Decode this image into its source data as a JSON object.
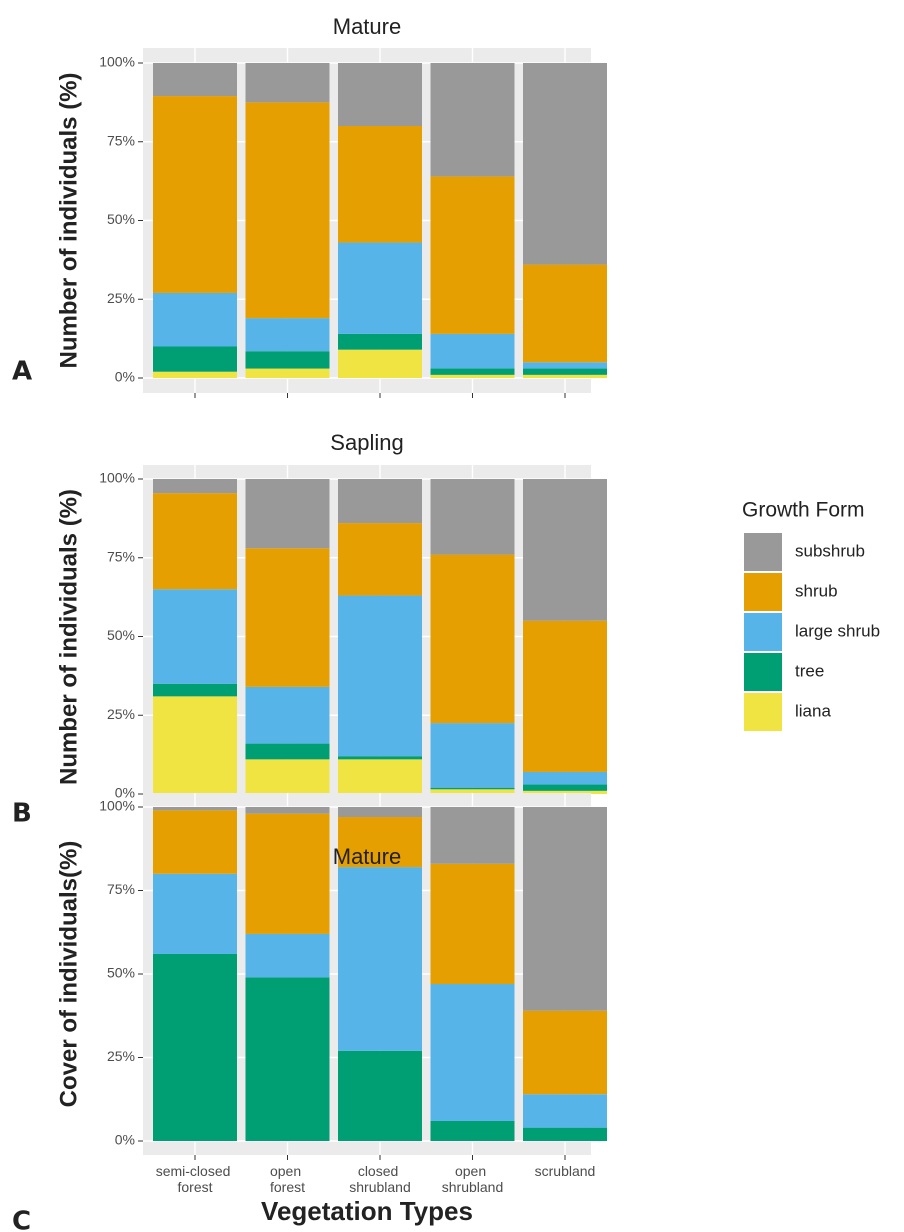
{
  "chart_data": [
    {
      "type": "bar",
      "stacked": true,
      "panel_label": "A",
      "title": "Mature",
      "y_label": "Number of individuals (%)",
      "categories": [
        "semi-closed forest",
        "open forest",
        "closed shrubland",
        "open shrubland",
        "scrubland"
      ],
      "show_category_labels": false,
      "ylim": [
        0,
        100
      ],
      "yticks": [
        {
          "value": 0,
          "label": "0%"
        },
        {
          "value": 25,
          "label": "25%"
        },
        {
          "value": 50,
          "label": "50%"
        },
        {
          "value": 75,
          "label": "75%"
        },
        {
          "value": 100,
          "label": "100%"
        }
      ],
      "grid": true,
      "legend": {
        "title": "Growth Form",
        "position": "right"
      },
      "series": [
        {
          "name": "liana",
          "color": "#F0E442",
          "values": [
            2,
            3,
            9,
            1,
            1
          ]
        },
        {
          "name": "tree",
          "color": "#009E73",
          "values": [
            8,
            5.5,
            5,
            2,
            2
          ]
        },
        {
          "name": "large shrub",
          "color": "#56B4E9",
          "values": [
            17,
            10.5,
            29,
            11,
            2
          ]
        },
        {
          "name": "shrub",
          "color": "#E69F00",
          "values": [
            62.5,
            68.5,
            37,
            50,
            31
          ]
        },
        {
          "name": "subshrub",
          "color": "#999999",
          "values": [
            10.5,
            12.5,
            20,
            36,
            64
          ]
        }
      ]
    },
    {
      "type": "bar",
      "stacked": true,
      "panel_label": "B",
      "title": "Sapling",
      "y_label": "Number of individuals (%)",
      "categories": [
        "semi-closed forest",
        "open forest",
        "closed shrubland",
        "open shrubland",
        "scrubland"
      ],
      "show_category_labels": false,
      "ylim": [
        0,
        100
      ],
      "yticks": [
        {
          "value": 0,
          "label": "0%"
        },
        {
          "value": 25,
          "label": "25%"
        },
        {
          "value": 50,
          "label": "50%"
        },
        {
          "value": 75,
          "label": "75%"
        },
        {
          "value": 100,
          "label": "100%"
        }
      ],
      "grid": true,
      "series": [
        {
          "name": "liana",
          "color": "#F0E442",
          "values": [
            31,
            11,
            11,
            1.5,
            1
          ]
        },
        {
          "name": "tree",
          "color": "#009E73",
          "values": [
            4,
            5,
            1,
            0.5,
            2
          ]
        },
        {
          "name": "large shrub",
          "color": "#56B4E9",
          "values": [
            30,
            18,
            51,
            20.5,
            4
          ]
        },
        {
          "name": "shrub",
          "color": "#E69F00",
          "values": [
            30.5,
            44,
            23,
            53.5,
            48
          ]
        },
        {
          "name": "subshrub",
          "color": "#999999",
          "values": [
            4.5,
            22,
            14,
            24,
            45
          ]
        }
      ]
    },
    {
      "type": "bar",
      "stacked": true,
      "panel_label": "C",
      "title": "Mature",
      "y_label": "Cover of individuals(%)",
      "x_label": "Vegetation Types",
      "categories": [
        "semi-closed forest",
        "open forest",
        "closed shrubland",
        "open shrubland",
        "scrubland"
      ],
      "show_category_labels": true,
      "ylim": [
        0,
        100
      ],
      "yticks": [
        {
          "value": 0,
          "label": "0%"
        },
        {
          "value": 25,
          "label": "25%"
        },
        {
          "value": 50,
          "label": "50%"
        },
        {
          "value": 75,
          "label": "75%"
        },
        {
          "value": 100,
          "label": "100%"
        }
      ],
      "grid": true,
      "series": [
        {
          "name": "liana",
          "color": "#F0E442",
          "values": [
            0,
            0,
            0,
            0,
            0
          ]
        },
        {
          "name": "tree",
          "color": "#009E73",
          "values": [
            56,
            49,
            27,
            6,
            4
          ]
        },
        {
          "name": "large shrub",
          "color": "#56B4E9",
          "values": [
            24,
            13,
            55,
            41,
            10
          ]
        },
        {
          "name": "shrub",
          "color": "#E69F00",
          "values": [
            19,
            36,
            15,
            36,
            25
          ]
        },
        {
          "name": "subshrub",
          "color": "#999999",
          "values": [
            1,
            2,
            3,
            17,
            61
          ]
        }
      ]
    }
  ]
}
